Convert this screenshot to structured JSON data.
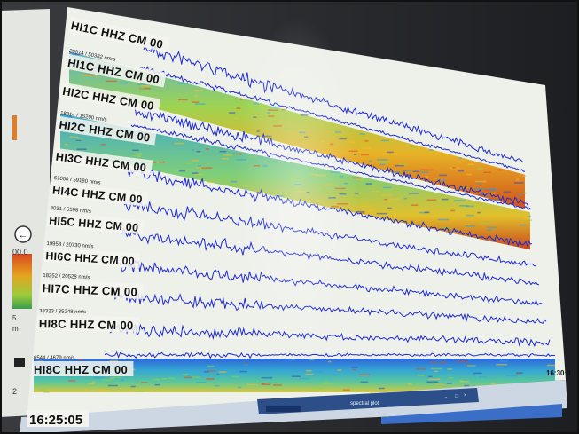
{
  "monitor": {
    "time_left": "16:25:05",
    "time_right": "16:30:0",
    "taskbar_label": "spectral plot",
    "taskbar_buttons": [
      "- ",
      "□",
      "×"
    ],
    "side_panel": {
      "value": "00.0",
      "number": "5",
      "unit": "m",
      "bottom": "2",
      "arrow_glyph": "←"
    }
  },
  "channels": [
    {
      "label": "HI1C HHZ CM 00",
      "type": "wave"
    },
    {
      "label": "HI1C HHZ CM 00",
      "type": "spectrogram",
      "amp": "20074 / 50382 nm/s"
    },
    {
      "label": "HI2C HHZ CM 00",
      "type": "wave"
    },
    {
      "label": "HI2C HHZ CM 00",
      "type": "spectrogram",
      "amp": "18814 / 15200 nm/s"
    },
    {
      "label": "HI3C HHZ CM 00",
      "type": "wave"
    },
    {
      "label": "HI4C HHZ CM 00",
      "type": "wave",
      "amp": "61000 / 59180 nm/s"
    },
    {
      "label": "HI5C HHZ CM 00",
      "type": "wave",
      "amp": "8031 / 5598 nm/s"
    },
    {
      "label": "HI6C HHZ CM 00",
      "type": "wave",
      "amp": "19958 / 20730 nm/s"
    },
    {
      "label": "HI7C HHZ CM 00",
      "type": "wave",
      "amp": "18252 / 20528 nm/s"
    },
    {
      "label": "HI8C HHZ CM 00",
      "type": "wave",
      "amp": "38323 / 35248 nm/s"
    },
    {
      "label": "HI8C HHZ CM 00",
      "type": "spectrogram",
      "amp": "6544 / 4679 nm/s"
    }
  ],
  "colors": {
    "trace": "#1f2bd0",
    "screen_bg": "#e9ece6",
    "spec_cool": "#3aa0c8",
    "spec_mid": "#9ad04a",
    "spec_warm": "#e8a020",
    "spec_hot": "#d24018"
  }
}
